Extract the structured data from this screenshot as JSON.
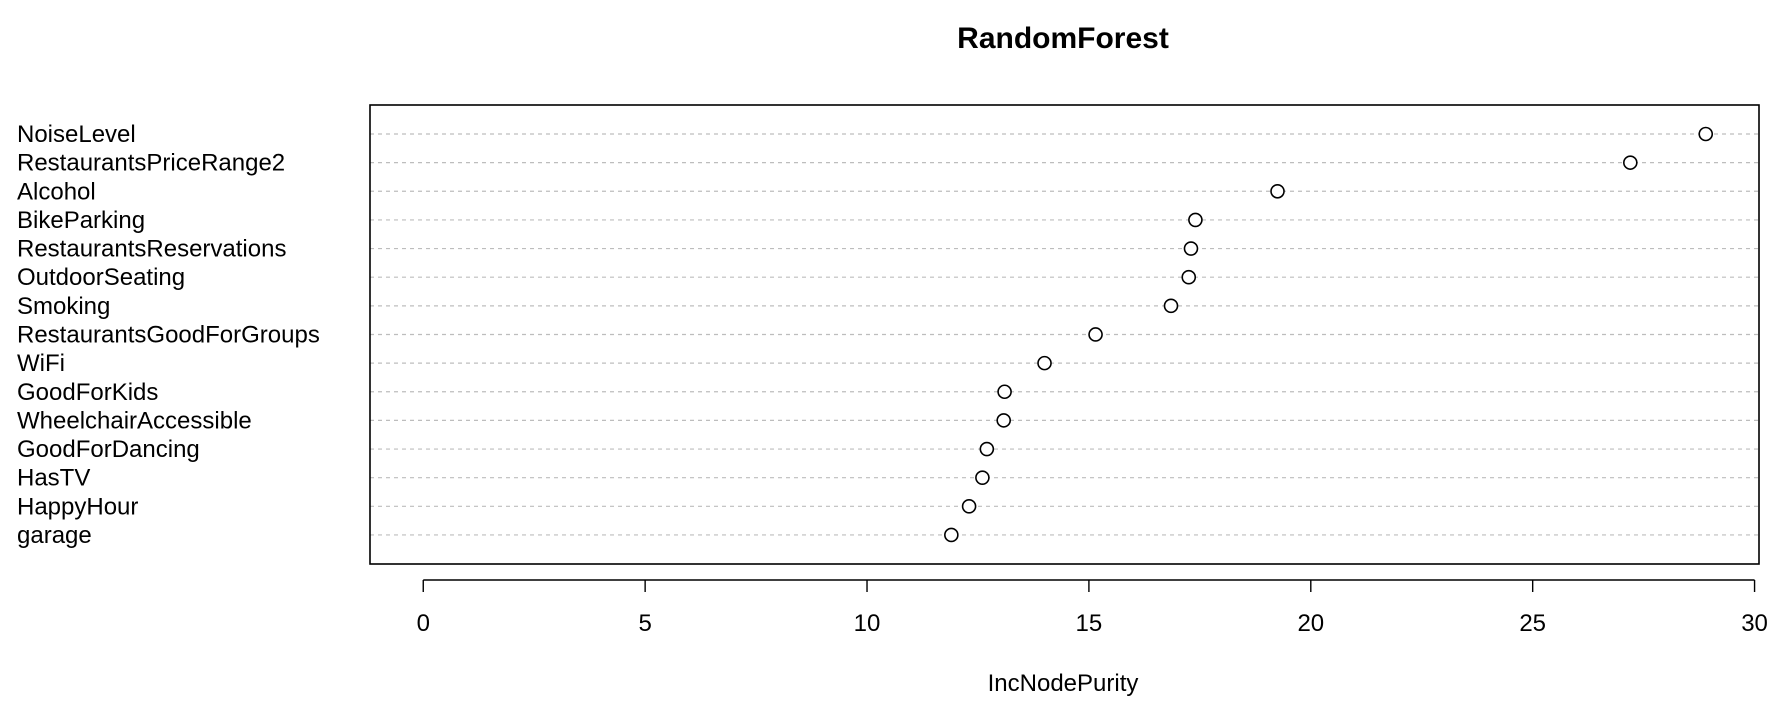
{
  "chart_data": {
    "type": "scatter",
    "title": "RandomForest",
    "xlabel": "IncNodePurity",
    "ylabel": "",
    "xlim": [
      -1.2,
      30.1
    ],
    "xticks": [
      0,
      5,
      10,
      15,
      20,
      25,
      30
    ],
    "xtick_labels": [
      "0",
      "5",
      "10",
      "15",
      "20",
      "25",
      "30"
    ],
    "grid": "dotted horizontal lines per variable",
    "categories": [
      "NoiseLevel",
      "RestaurantsPriceRange2",
      "Alcohol",
      "BikeParking",
      "RestaurantsReservations",
      "OutdoorSeating",
      "Smoking",
      "RestaurantsGoodForGroups",
      "WiFi",
      "GoodForKids",
      "WheelchairAccessible",
      "GoodForDancing",
      "HasTV",
      "HappyHour",
      "garage"
    ],
    "values": [
      28.9,
      27.2,
      19.25,
      17.4,
      17.3,
      17.25,
      16.85,
      15.15,
      14.0,
      13.1,
      13.08,
      12.7,
      12.6,
      12.3,
      11.9
    ]
  }
}
